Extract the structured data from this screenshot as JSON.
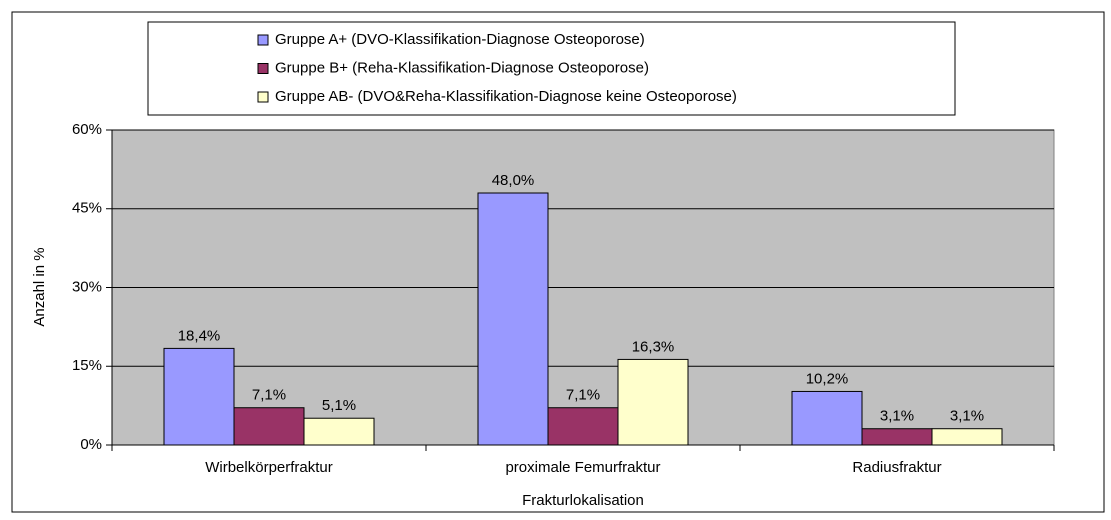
{
  "chart_data": {
    "type": "bar",
    "categories": [
      "Wirbelkörperfraktur",
      "proximale Femurfraktur",
      "Radiusfraktur"
    ],
    "series": [
      {
        "name": "Gruppe A+ (DVO-Klassifikation-Diagnose Osteoporose)",
        "color": "#9999ff",
        "values": [
          18.4,
          48.0,
          10.2
        ],
        "value_labels": [
          "18,4%",
          "48,0%",
          "10,2%"
        ]
      },
      {
        "name": "Gruppe B+ (Reha-Klassifikation-Diagnose Osteoporose)",
        "color": "#993366",
        "values": [
          7.1,
          7.1,
          3.1
        ],
        "value_labels": [
          "7,1%",
          "7,1%",
          "3,1%"
        ]
      },
      {
        "name": "Gruppe AB- (DVO&Reha-Klassifikation-Diagnose keine Osteoporose)",
        "color": "#ffffcc",
        "values": [
          5.1,
          16.3,
          3.1
        ],
        "value_labels": [
          "5,1%",
          "16,3%",
          "3,1%"
        ]
      }
    ],
    "ylabel": "Anzahl in %",
    "xlabel": "Frakturlokalisation",
    "ylim": [
      0,
      60
    ],
    "yticks": [
      {
        "value": 0,
        "label": "0%"
      },
      {
        "value": 15,
        "label": "15%"
      },
      {
        "value": 30,
        "label": "30%"
      },
      {
        "value": 45,
        "label": "45%"
      },
      {
        "value": 60,
        "label": "60%"
      }
    ],
    "grid": true,
    "legend": "top",
    "plot_background": "#c0c0c0"
  }
}
